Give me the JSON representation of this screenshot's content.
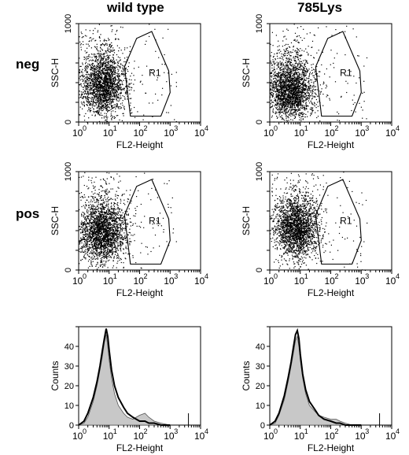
{
  "headers": {
    "columns": [
      "wild type",
      "785Lys"
    ],
    "rows": [
      "neg",
      "pos"
    ]
  },
  "colors": {
    "dots": "#000000",
    "hist_fill": "#c8c8c8",
    "hist_line": "#000000"
  },
  "chart_data": [
    {
      "type": "scatter",
      "panel": "neg-wild-type",
      "xlabel": "FL2-Height",
      "ylabel": "SSC-H",
      "xscale": "log",
      "xlim": [
        1,
        10000
      ],
      "ylim": [
        0,
        1000
      ],
      "x_ticks": [
        "10",
        "10",
        "10",
        "10",
        "10"
      ],
      "x_tick_exp": [
        "0",
        "1",
        "2",
        "3",
        "4"
      ],
      "y_ticks": [
        "0",
        "1000"
      ],
      "gate": {
        "label": "R1",
        "polygon": [
          [
            32,
            560
          ],
          [
            80,
            850
          ],
          [
            250,
            920
          ],
          [
            900,
            520
          ],
          [
            1000,
            300
          ],
          [
            500,
            60
          ],
          [
            50,
            60
          ]
        ]
      },
      "cluster": {
        "center_x": 6,
        "center_y": 380,
        "n_points": 2200
      }
    },
    {
      "type": "scatter",
      "panel": "neg-785Lys",
      "xlabel": "FL2-Height",
      "ylabel": "SSC-H",
      "xscale": "log",
      "xlim": [
        1,
        10000
      ],
      "ylim": [
        0,
        1000
      ],
      "x_ticks": [
        "10",
        "10",
        "10",
        "10",
        "10"
      ],
      "x_tick_exp": [
        "0",
        "1",
        "2",
        "3",
        "4"
      ],
      "y_ticks": [
        "0",
        "1000"
      ],
      "gate": {
        "label": "R1",
        "polygon": [
          [
            32,
            560
          ],
          [
            80,
            850
          ],
          [
            250,
            920
          ],
          [
            900,
            520
          ],
          [
            1000,
            300
          ],
          [
            500,
            60
          ],
          [
            50,
            60
          ]
        ]
      },
      "cluster": {
        "center_x": 5,
        "center_y": 320,
        "n_points": 2400
      }
    },
    {
      "type": "scatter",
      "panel": "pos-wild-type",
      "xlabel": "FL2-Height",
      "ylabel": "SSC-H",
      "xscale": "log",
      "xlim": [
        1,
        10000
      ],
      "ylim": [
        0,
        1000
      ],
      "x_ticks": [
        "10",
        "10",
        "10",
        "10",
        "10"
      ],
      "x_tick_exp": [
        "0",
        "1",
        "2",
        "3",
        "4"
      ],
      "y_ticks": [
        "0",
        "1000"
      ],
      "gate": {
        "label": "R1",
        "polygon": [
          [
            32,
            560
          ],
          [
            80,
            850
          ],
          [
            250,
            920
          ],
          [
            900,
            520
          ],
          [
            1000,
            300
          ],
          [
            500,
            60
          ],
          [
            50,
            60
          ]
        ]
      },
      "cluster": {
        "center_x": 6,
        "center_y": 380,
        "n_points": 2400
      }
    },
    {
      "type": "scatter",
      "panel": "pos-785Lys",
      "xlabel": "FL2-Height",
      "ylabel": "SSC-H",
      "xscale": "log",
      "xlim": [
        1,
        10000
      ],
      "ylim": [
        0,
        1000
      ],
      "x_ticks": [
        "10",
        "10",
        "10",
        "10",
        "10"
      ],
      "x_tick_exp": [
        "0",
        "1",
        "2",
        "3",
        "4"
      ],
      "y_ticks": [
        "0",
        "1000"
      ],
      "gate": {
        "label": "R1",
        "polygon": [
          [
            32,
            560
          ],
          [
            80,
            850
          ],
          [
            250,
            920
          ],
          [
            900,
            520
          ],
          [
            1000,
            300
          ],
          [
            500,
            60
          ],
          [
            50,
            60
          ]
        ]
      },
      "cluster": {
        "center_x": 7,
        "center_y": 420,
        "n_points": 2300
      }
    },
    {
      "type": "area",
      "panel": "hist-wild-type",
      "xlabel": "FL2-Height",
      "ylabel": "Counts",
      "xscale": "log",
      "xlim": [
        1,
        10000
      ],
      "ylim": [
        0,
        50
      ],
      "x_ticks": [
        "10",
        "10",
        "10",
        "10",
        "10"
      ],
      "x_tick_exp": [
        "0",
        "1",
        "2",
        "3",
        "4"
      ],
      "y_ticks": [
        "0",
        "10",
        "20",
        "30",
        "40"
      ],
      "series": [
        {
          "role": "outline",
          "x": [
            1,
            1.5,
            2,
            3,
            4,
            5,
            6,
            7,
            8,
            9,
            10,
            12,
            15,
            20,
            30,
            40,
            60,
            100,
            150,
            200,
            300,
            500,
            1000
          ],
          "y": [
            0,
            2,
            6,
            14,
            22,
            30,
            38,
            44,
            49,
            45,
            38,
            28,
            20,
            14,
            9,
            6,
            4,
            2,
            2,
            1,
            1,
            0,
            0
          ]
        },
        {
          "role": "filled",
          "x": [
            1,
            1.5,
            2,
            3,
            4,
            5,
            6,
            7,
            8,
            9,
            10,
            12,
            15,
            20,
            30,
            40,
            60,
            100,
            150,
            200,
            300,
            500,
            1000
          ],
          "y": [
            0,
            1,
            4,
            12,
            20,
            28,
            35,
            42,
            46,
            40,
            33,
            24,
            16,
            10,
            6,
            4,
            3,
            5,
            6,
            4,
            2,
            1,
            0
          ]
        }
      ]
    },
    {
      "type": "area",
      "panel": "hist-785Lys",
      "xlabel": "FL2-Height",
      "ylabel": "Counts",
      "xscale": "log",
      "xlim": [
        1,
        10000
      ],
      "ylim": [
        0,
        50
      ],
      "x_ticks": [
        "10",
        "10",
        "10",
        "10",
        "10"
      ],
      "x_tick_exp": [
        "0",
        "1",
        "2",
        "3",
        "4"
      ],
      "y_ticks": [
        "0",
        "10",
        "20",
        "30",
        "40"
      ],
      "series": [
        {
          "role": "outline",
          "x": [
            1,
            1.5,
            2,
            3,
            4,
            5,
            6,
            7,
            8,
            9,
            10,
            12,
            15,
            20,
            30,
            40,
            60,
            100,
            150,
            200,
            300,
            500,
            1000
          ],
          "y": [
            0,
            2,
            6,
            15,
            24,
            32,
            40,
            46,
            48,
            44,
            36,
            26,
            18,
            12,
            8,
            5,
            3,
            2,
            1,
            1,
            0,
            0,
            0
          ]
        },
        {
          "role": "filled",
          "x": [
            1,
            1.5,
            2,
            3,
            4,
            5,
            6,
            7,
            8,
            9,
            10,
            12,
            15,
            20,
            30,
            40,
            60,
            100,
            150,
            200,
            300,
            500,
            1000
          ],
          "y": [
            0,
            1,
            5,
            13,
            22,
            30,
            37,
            43,
            45,
            40,
            33,
            24,
            16,
            10,
            7,
            5,
            4,
            3,
            3,
            2,
            1,
            0,
            0
          ]
        }
      ]
    }
  ]
}
